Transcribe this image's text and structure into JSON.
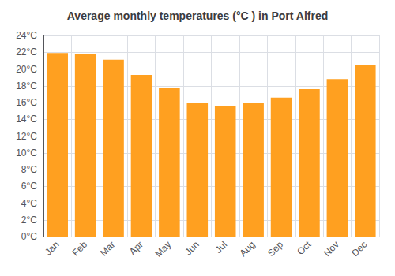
{
  "chart_data": {
    "type": "bar",
    "title": "Average monthly temperatures (°C ) in Port Alfred",
    "categories": [
      "Jan",
      "Feb",
      "Mar",
      "Apr",
      "May",
      "Jun",
      "Jul",
      "Aug",
      "Sep",
      "Oct",
      "Nov",
      "Dec"
    ],
    "values": [
      21.9,
      21.8,
      21.1,
      19.3,
      17.7,
      16.0,
      15.6,
      16.0,
      16.6,
      17.6,
      18.8,
      20.5
    ],
    "color": "#FFA020",
    "ylim": [
      0,
      24
    ],
    "yticks": [
      {
        "value": 0,
        "label": "0°C"
      },
      {
        "value": 2,
        "label": "2°C"
      },
      {
        "value": 4,
        "label": "4°C"
      },
      {
        "value": 6,
        "label": "6°C"
      },
      {
        "value": 8,
        "label": "8°C"
      },
      {
        "value": 10,
        "label": "10°C"
      },
      {
        "value": 12,
        "label": "12°C"
      },
      {
        "value": 14,
        "label": "14°C"
      },
      {
        "value": 16,
        "label": "16°C"
      },
      {
        "value": 18,
        "label": "18°C"
      },
      {
        "value": 20,
        "label": "20°C"
      },
      {
        "value": 22,
        "label": "22°C"
      },
      {
        "value": 24,
        "label": "24°C"
      }
    ],
    "grid": true
  }
}
